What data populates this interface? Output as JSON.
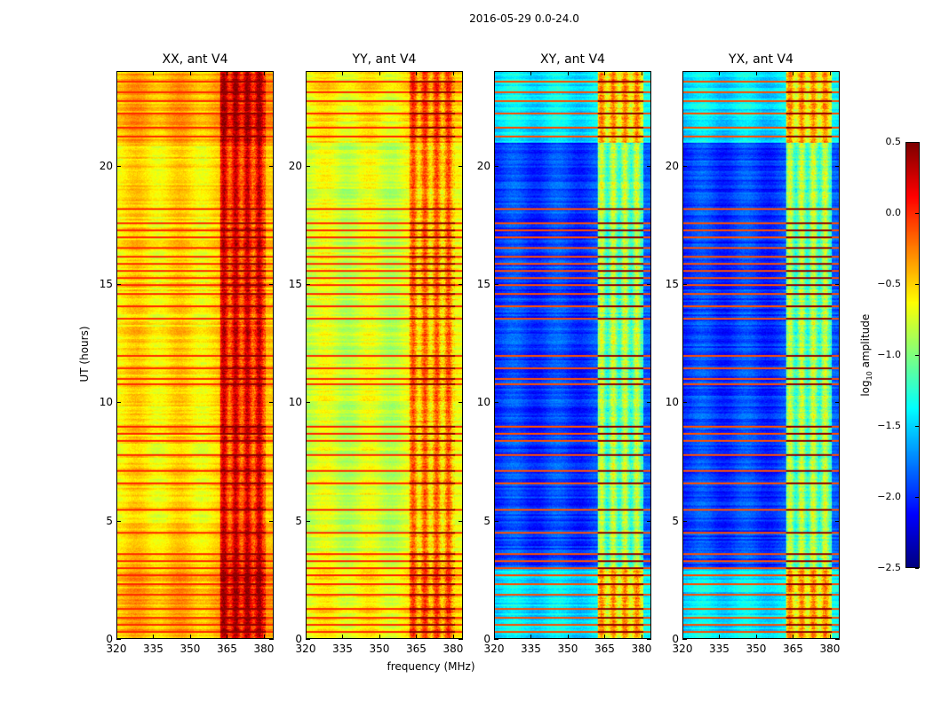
{
  "chart_data": {
    "type": "heatmap",
    "title": "2016-05-29 0.0-24.0",
    "xlabel": "frequency (MHz)",
    "ylabel": "UT (hours)",
    "xlim": [
      320,
      384
    ],
    "ylim": [
      0,
      24
    ],
    "xticks": [
      "320",
      "335",
      "350",
      "365",
      "380"
    ],
    "xtick_values": [
      320,
      335,
      350,
      365,
      380
    ],
    "yticks": [
      "0",
      "5",
      "10",
      "15",
      "20"
    ],
    "ytick_values": [
      0,
      5,
      10,
      15,
      20
    ],
    "colorbar": {
      "label": "log10 amplitude",
      "label_main": "log",
      "label_sub": "10",
      "label_rest": " amplitude",
      "colormap": "jet",
      "range": [
        -2.5,
        0.5
      ],
      "ticks": [
        "0.5",
        "0.0",
        "−0.5",
        "−1.0",
        "−1.5",
        "−2.0",
        "−2.5"
      ],
      "tick_values": [
        0.5,
        0.0,
        -0.5,
        -1.0,
        -1.5,
        -2.0,
        -2.5
      ]
    },
    "panels": [
      {
        "title": "XX, ant V4",
        "base_level": -0.55,
        "rfi_level": 0.05
      },
      {
        "title": "YY, ant V4",
        "base_level": -0.75,
        "rfi_level": -0.35
      },
      {
        "title": "XY, ant V4",
        "base_level": -1.95,
        "rfi_level": -1.0
      },
      {
        "title": "YX, ant V4",
        "base_level": -1.95,
        "rfi_level": -1.0
      }
    ],
    "rfi_band_mhz": [
      362,
      381
    ],
    "flagged_hours": [
      0.3,
      0.6,
      0.9,
      1.3,
      1.9,
      2.3,
      2.7,
      3.0,
      3.3,
      3.6,
      4.5,
      5.5,
      6.6,
      7.1,
      7.8,
      8.4,
      8.7,
      9.0,
      10.8,
      11.0,
      11.5,
      12.0,
      13.6,
      14.1,
      14.6,
      15.0,
      15.3,
      15.6,
      15.9,
      16.2,
      16.6,
      17.0,
      17.3,
      17.6,
      18.2,
      21.3,
      21.7,
      22.3,
      22.8,
      23.2,
      23.6
    ]
  }
}
